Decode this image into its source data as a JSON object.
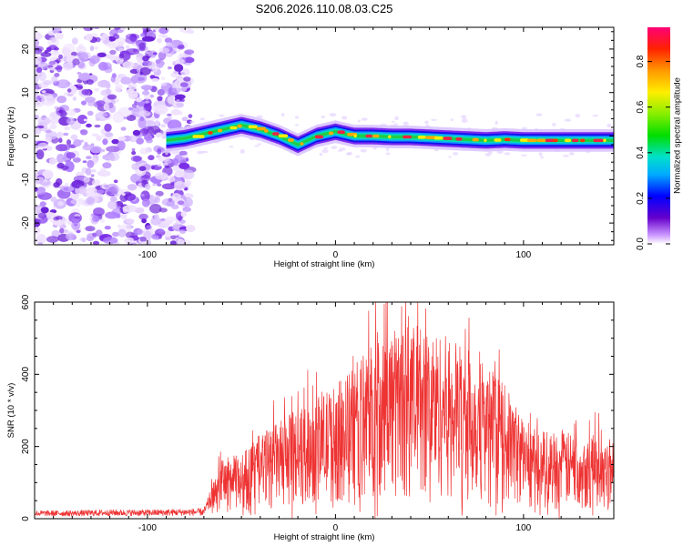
{
  "title": "S206.2026.110.08.03.C25",
  "chart_data": [
    {
      "type": "heatmap",
      "name": "spectrogram",
      "xlabel": "Height of straight line (km)",
      "ylabel": "Frequency (Hz)",
      "xlim": [
        -160,
        148
      ],
      "ylim": [
        -25,
        25
      ],
      "xticks": [
        -100,
        0,
        100
      ],
      "xtick_labels": [
        "-100",
        "0",
        "100"
      ],
      "yticks": [
        -20,
        -10,
        0,
        10,
        20
      ],
      "ytick_labels": [
        "-20",
        "-10",
        "0",
        "10",
        "20"
      ],
      "noise_region_x": [
        -160,
        -77
      ],
      "signal_ridge": {
        "x": [
          -90,
          -80,
          -70,
          -60,
          -50,
          -40,
          -30,
          -20,
          -10,
          0,
          10,
          20,
          30,
          40,
          50,
          60,
          70,
          80,
          90,
          100,
          110,
          120,
          130,
          140,
          148
        ],
        "y": [
          -1,
          -0.5,
          0.5,
          1.5,
          2.5,
          1.5,
          0,
          -2,
          0,
          1,
          0,
          0,
          -0.2,
          -0.2,
          -0.4,
          -0.6,
          -0.8,
          -1,
          -0.8,
          -1,
          -1,
          -1,
          -1,
          -1,
          -1
        ]
      },
      "colorbar": {
        "label": "Normalized spectral amplitude",
        "range": [
          0,
          0.95
        ],
        "ticks": [
          0.0,
          0.2,
          0.4,
          0.6,
          0.8
        ],
        "tick_labels": [
          "0.0",
          "0.2",
          "0.4",
          "0.6",
          "0.8"
        ]
      }
    },
    {
      "type": "line",
      "name": "snr",
      "xlabel": "Height of straight line (km)",
      "ylabel": "SNR (10 * v/v)",
      "xlim": [
        -160,
        148
      ],
      "ylim": [
        0,
        600
      ],
      "xticks": [
        -100,
        0,
        100
      ],
      "xtick_labels": [
        "-100",
        "0",
        "100"
      ],
      "yticks": [
        0,
        200,
        400,
        600
      ],
      "ytick_labels": [
        "0",
        "200",
        "400",
        "600"
      ],
      "color": "#ee3333",
      "envelope": {
        "x": [
          -160,
          -140,
          -120,
          -100,
          -80,
          -70,
          -60,
          -50,
          -40,
          -30,
          -20,
          -10,
          0,
          10,
          20,
          30,
          40,
          50,
          60,
          70,
          80,
          90,
          100,
          110,
          120,
          130,
          140,
          148
        ],
        "y": [
          20,
          20,
          22,
          22,
          24,
          25,
          150,
          160,
          210,
          240,
          270,
          300,
          330,
          380,
          440,
          470,
          480,
          470,
          450,
          420,
          380,
          330,
          250,
          220,
          215,
          210,
          205,
          200
        ]
      }
    }
  ]
}
